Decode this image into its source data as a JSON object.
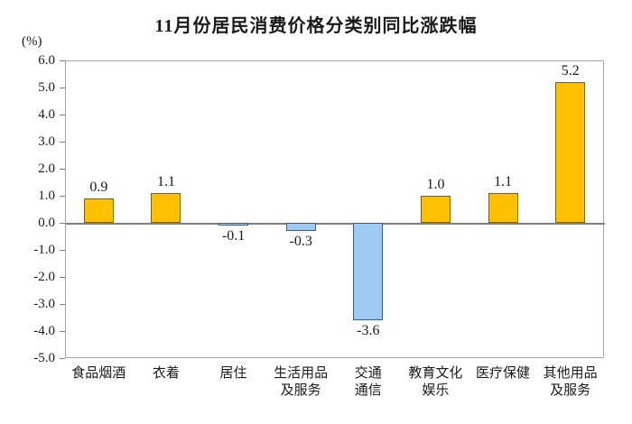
{
  "chart_data": {
    "type": "bar",
    "title": "11月份居民消费价格分类别同比涨跌幅",
    "ylabel": "(%)",
    "xlabel": "",
    "categories": [
      "食品烟酒",
      "衣着",
      "居住",
      "生活用品\n及服务",
      "交通\n通信",
      "教育文化\n娱乐",
      "医疗保健",
      "其他用品\n及服务"
    ],
    "values": [
      0.9,
      1.1,
      -0.1,
      -0.3,
      -3.6,
      1.0,
      1.1,
      5.2
    ],
    "value_labels": [
      "0.9",
      "1.1",
      "-0.1",
      "-0.3",
      "-3.6",
      "1.0",
      "1.1",
      "5.2"
    ],
    "ylim": [
      -5.0,
      6.0
    ],
    "ytick_step": 1.0,
    "ytick_labels": [
      "6.0",
      "5.0",
      "4.0",
      "3.0",
      "2.0",
      "1.0",
      "0.0",
      "-1.0",
      "-2.0",
      "-3.0",
      "-4.0",
      "-5.0"
    ],
    "grid": "off",
    "legend": "none",
    "colors": {
      "positive_fill": "#FFC000",
      "positive_border": "#7F6000",
      "negative_fill": "#9DC9F2",
      "negative_border": "#3E5C76",
      "zero_line": "#7F7F7F",
      "plot_border": "#A6A6A6",
      "text": "#1A1A1A",
      "background": "#FFFFFF"
    }
  }
}
